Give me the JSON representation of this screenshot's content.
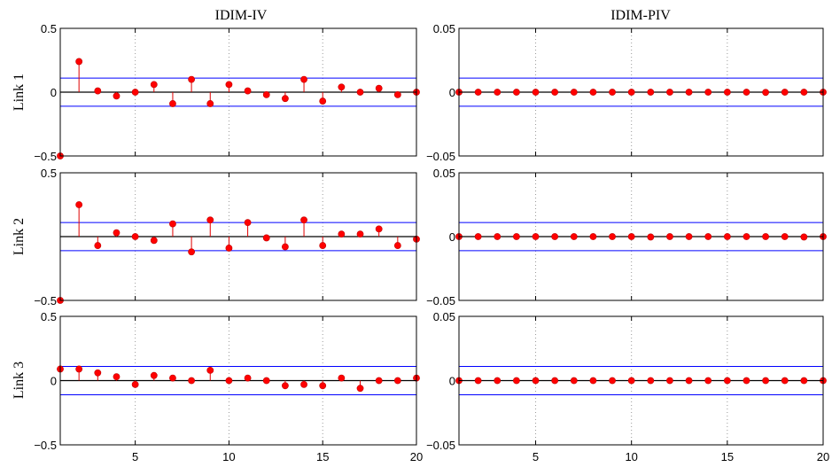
{
  "chart_data": {
    "type": "stem",
    "column_titles": [
      "IDIM-IV",
      "IDIM-PIV"
    ],
    "row_labels": [
      "Link 1",
      "Link 2",
      "Link 3"
    ],
    "x": [
      1,
      2,
      3,
      4,
      5,
      6,
      7,
      8,
      9,
      10,
      11,
      12,
      13,
      14,
      15,
      16,
      17,
      18,
      19,
      20
    ],
    "xlim": [
      1,
      20
    ],
    "xticks": [
      5,
      10,
      15,
      20
    ],
    "colors": {
      "stem": "#e00000",
      "marker": "#ff0000",
      "bound": "#0000ff",
      "zero": "#000000"
    },
    "panels": [
      {
        "row": 0,
        "col": 0,
        "ylim": [
          -0.5,
          0.5
        ],
        "yticks": [
          "0.5",
          "0",
          "−0.5"
        ],
        "bound": 0.11,
        "values": [
          -0.5,
          0.24,
          0.01,
          -0.03,
          0.0,
          0.06,
          -0.09,
          0.1,
          -0.09,
          0.06,
          0.01,
          -0.02,
          -0.05,
          0.1,
          -0.07,
          0.04,
          0.0,
          0.03,
          -0.02,
          0.0
        ]
      },
      {
        "row": 0,
        "col": 1,
        "ylim": [
          -0.05,
          0.05
        ],
        "yticks": [
          "0.05",
          "0",
          "−0.05"
        ],
        "bound": 0.011,
        "values": [
          0,
          0,
          0,
          0,
          0,
          0,
          0,
          0,
          0,
          0,
          0,
          0,
          0,
          0,
          0,
          0,
          -0.0002,
          0,
          0,
          0
        ]
      },
      {
        "row": 1,
        "col": 0,
        "ylim": [
          -0.5,
          0.5
        ],
        "yticks": [
          "0.5",
          "",
          "−0.5"
        ],
        "bound": 0.11,
        "values": [
          -0.5,
          0.25,
          -0.07,
          0.03,
          0.0,
          -0.03,
          0.1,
          -0.12,
          0.13,
          -0.09,
          0.11,
          -0.01,
          -0.08,
          0.13,
          -0.07,
          0.02,
          0.02,
          0.06,
          -0.07,
          -0.02
        ]
      },
      {
        "row": 1,
        "col": 1,
        "ylim": [
          -0.05,
          0.05
        ],
        "yticks": [
          "0.05",
          "0",
          "−0.05"
        ],
        "bound": 0.011,
        "values": [
          0,
          0,
          0,
          0,
          0,
          0,
          0,
          0,
          0,
          0,
          -0.0003,
          0,
          0,
          0,
          0,
          0,
          0,
          0,
          -0.0003,
          0
        ]
      },
      {
        "row": 2,
        "col": 0,
        "ylim": [
          -0.5,
          0.5
        ],
        "yticks": [
          "0.5",
          "0",
          "−0.5"
        ],
        "bound": 0.11,
        "values": [
          0.09,
          0.09,
          0.06,
          0.03,
          -0.03,
          0.04,
          0.02,
          0.0,
          0.08,
          0.0,
          0.02,
          0.0,
          -0.04,
          -0.03,
          -0.04,
          0.02,
          -0.06,
          0.0,
          0.0,
          0.02
        ]
      },
      {
        "row": 2,
        "col": 1,
        "ylim": [
          -0.05,
          0.05
        ],
        "yticks": [
          "0.05",
          "0",
          "−0.05"
        ],
        "bound": 0.011,
        "values": [
          0,
          0,
          0,
          0,
          0,
          0,
          0,
          0,
          0,
          0,
          0,
          0,
          0,
          0,
          0,
          0,
          0,
          0,
          0,
          0
        ]
      }
    ]
  }
}
